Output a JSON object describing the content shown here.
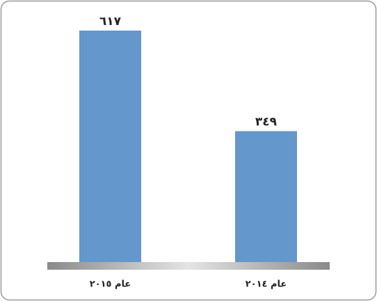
{
  "chart_data": {
    "type": "bar",
    "categories": [
      "عام ٢٠١٥",
      "عام ٢٠١٤"
    ],
    "values": [
      617,
      349
    ],
    "value_labels": [
      "٦١٧",
      "٣٤٩"
    ],
    "color": "#6497cb"
  }
}
